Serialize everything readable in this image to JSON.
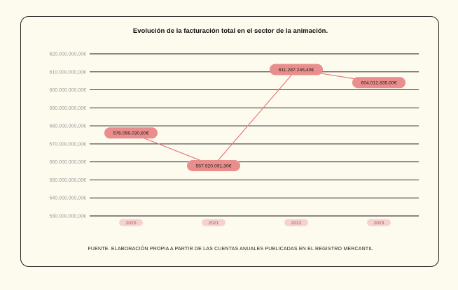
{
  "colors": {
    "background": "#fdfbee",
    "line": "#e57b7b",
    "label_fill": "#e98d8d",
    "xtick_fill": "#f5d2cf",
    "grid": "#111111",
    "tick_text": "#999999"
  },
  "title": "Evolución de la facturación total en el sector de la animación.",
  "source": "FUENTE. ELABORACIÓN PROPIA A PARTIR DE LAS CUENTAS ANUALES PUBLICADAS EN EL REGISTRO MERCANTIL",
  "chart_data": {
    "type": "line",
    "title": "Evolución de la facturación total en el sector de la animación.",
    "categories": [
      "2020",
      "2021",
      "2022",
      "2023"
    ],
    "values": [
      576056030.6,
      557920091.3,
      611287245.4,
      604012835.0
    ],
    "data_labels": [
      "576.056.030,60€",
      "557.920.091,30€",
      "611.287.245,40€",
      "604.012.835,00€"
    ],
    "ylim": [
      530000000,
      620000000
    ],
    "y_ticks": [
      530000000,
      540000000,
      550000000,
      560000000,
      570000000,
      580000000,
      590000000,
      600000000,
      610000000,
      620000000
    ],
    "y_tick_labels": [
      "530.000.000,00€",
      "540.000.000,00€",
      "550.000.000,00€",
      "560.000.000,00€",
      "570.000.000,00€",
      "580.000.000,00€",
      "590.000.000,00€",
      "600.000.000,00€",
      "610.000.000,00€",
      "620.000.000,00€"
    ],
    "grid": true,
    "legend": "none"
  }
}
